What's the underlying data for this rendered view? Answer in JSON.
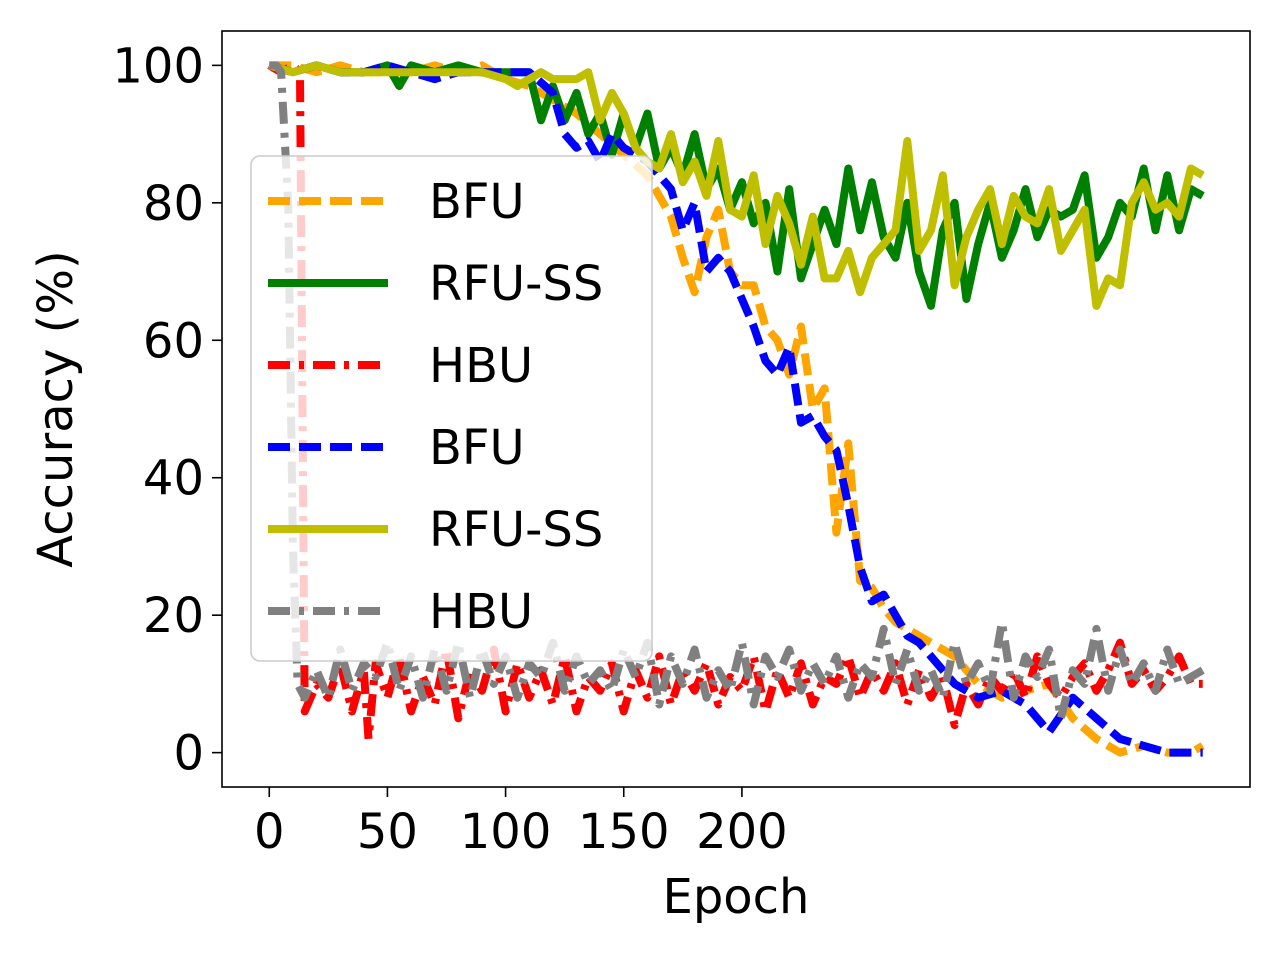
{
  "chart_data": {
    "type": "line",
    "title": "",
    "xlabel": "Epoch",
    "ylabel": "Accuracy (%)",
    "xlim": [
      -20,
      415
    ],
    "ylim": [
      -5,
      105
    ],
    "xticks": [
      0,
      50,
      100,
      150,
      200
    ],
    "yticks": [
      0,
      20,
      40,
      60,
      80,
      100
    ],
    "grid": false,
    "legend_position": "left",
    "series": [
      {
        "name": "BFU",
        "color": "#FFA500",
        "style": "dashed",
        "x": [
          0,
          10,
          20,
          30,
          40,
          50,
          60,
          70,
          80,
          90,
          100,
          110,
          120,
          130,
          140,
          150,
          160,
          170,
          175,
          180,
          185,
          190,
          195,
          200,
          205,
          210,
          215,
          220,
          225,
          230,
          235,
          240,
          245,
          250,
          255,
          260,
          265,
          270,
          275,
          280,
          285,
          290,
          300,
          310,
          320,
          330,
          340,
          350,
          360,
          370,
          380,
          390,
          395
        ],
        "y": [
          100,
          100,
          99,
          100,
          99,
          99,
          99,
          100,
          99,
          100,
          98,
          97,
          95,
          93,
          90,
          87,
          84,
          78,
          72,
          67,
          75,
          79,
          70,
          68,
          68,
          62,
          60,
          55,
          62,
          50,
          53,
          32,
          45,
          25,
          24,
          21,
          19,
          18,
          17,
          16,
          15,
          14,
          10,
          8,
          9,
          10,
          5,
          2,
          0,
          1,
          0,
          0,
          1
        ]
      },
      {
        "name": "RFU-SS",
        "color": "#008000",
        "style": "solid",
        "x": [
          0,
          10,
          20,
          30,
          40,
          50,
          55,
          60,
          70,
          80,
          90,
          100,
          110,
          115,
          120,
          125,
          130,
          135,
          140,
          145,
          150,
          155,
          160,
          165,
          170,
          175,
          180,
          185,
          190,
          195,
          200,
          205,
          210,
          215,
          220,
          225,
          230,
          235,
          240,
          245,
          250,
          255,
          260,
          265,
          270,
          275,
          280,
          285,
          290,
          295,
          300,
          305,
          310,
          315,
          320,
          325,
          330,
          335,
          340,
          345,
          350,
          355,
          360,
          365,
          370,
          375,
          380,
          385,
          390,
          395
        ],
        "y": [
          100,
          99,
          100,
          99,
          99,
          100,
          97,
          100,
          99,
          100,
          99,
          99,
          99,
          92,
          97,
          92,
          96,
          90,
          93,
          87,
          93,
          88,
          93,
          85,
          88,
          84,
          90,
          82,
          85,
          79,
          83,
          77,
          80,
          70,
          82,
          69,
          74,
          79,
          74,
          85,
          76,
          83,
          75,
          72,
          80,
          70,
          65,
          76,
          80,
          66,
          74,
          80,
          72,
          76,
          82,
          75,
          79,
          78,
          79,
          84,
          72,
          75,
          80,
          78,
          85,
          76,
          84,
          76,
          82,
          81
        ]
      },
      {
        "name": "HBU",
        "color": "#FF0000",
        "style": "dashdot",
        "x": [
          0,
          5,
          10,
          13,
          15,
          20,
          25,
          30,
          35,
          40,
          42,
          45,
          50,
          55,
          60,
          65,
          70,
          75,
          80,
          85,
          90,
          95,
          100,
          105,
          110,
          115,
          120,
          125,
          130,
          135,
          140,
          145,
          150,
          155,
          160,
          165,
          170,
          175,
          180,
          185,
          190,
          195,
          200,
          205,
          210,
          215,
          220,
          225,
          230,
          235,
          240,
          245,
          250,
          255,
          260,
          265,
          270,
          275,
          280,
          285,
          290,
          295,
          300,
          305,
          310,
          315,
          320,
          325,
          330,
          335,
          340,
          345,
          350,
          355,
          360,
          365,
          370,
          375,
          380,
          385,
          390,
          395
        ],
        "y": [
          100,
          99,
          100,
          99,
          6,
          10,
          8,
          13,
          6,
          12,
          2,
          13,
          8,
          14,
          6,
          11,
          7,
          15,
          5,
          12,
          9,
          15,
          6,
          13,
          8,
          12,
          7,
          14,
          6,
          11,
          9,
          13,
          6,
          12,
          8,
          14,
          7,
          12,
          9,
          13,
          7,
          11,
          9,
          14,
          6,
          12,
          8,
          13,
          7,
          11,
          10,
          14,
          8,
          12,
          9,
          13,
          7,
          12,
          8,
          11,
          4,
          10,
          7,
          11,
          9,
          12,
          8,
          14,
          10,
          8,
          11,
          13,
          9,
          12,
          16,
          10,
          12,
          9,
          11,
          14,
          10,
          10
        ]
      },
      {
        "name": "BFU",
        "color": "#0000FF",
        "style": "dashed",
        "x": [
          0,
          10,
          20,
          30,
          40,
          50,
          60,
          70,
          80,
          90,
          100,
          110,
          120,
          125,
          130,
          135,
          140,
          145,
          150,
          155,
          160,
          165,
          170,
          175,
          180,
          185,
          190,
          195,
          200,
          205,
          210,
          215,
          220,
          225,
          230,
          235,
          240,
          245,
          250,
          255,
          260,
          265,
          270,
          275,
          280,
          285,
          290,
          300,
          310,
          320,
          330,
          340,
          350,
          360,
          370,
          380,
          390,
          395
        ],
        "y": [
          100,
          99,
          100,
          99,
          99,
          100,
          99,
          98,
          99,
          99,
          99,
          99,
          96,
          90,
          88,
          89,
          86,
          90,
          88,
          87,
          86,
          84,
          82,
          76,
          80,
          70,
          72,
          70,
          66,
          62,
          57,
          55,
          59,
          48,
          49,
          46,
          44,
          36,
          27,
          22,
          23,
          20,
          17,
          16,
          14,
          12,
          10,
          8,
          9,
          7,
          3,
          8,
          5,
          2,
          1,
          0,
          0,
          0
        ]
      },
      {
        "name": "RFU-SS",
        "color": "#BFBF00",
        "style": "solid",
        "x": [
          0,
          10,
          20,
          30,
          40,
          50,
          60,
          70,
          80,
          90,
          100,
          105,
          110,
          115,
          120,
          125,
          130,
          135,
          140,
          145,
          150,
          155,
          160,
          165,
          170,
          175,
          180,
          185,
          190,
          195,
          200,
          205,
          210,
          215,
          220,
          225,
          230,
          235,
          240,
          245,
          250,
          255,
          260,
          265,
          270,
          275,
          280,
          285,
          290,
          295,
          300,
          305,
          310,
          315,
          320,
          325,
          330,
          335,
          340,
          345,
          350,
          355,
          360,
          365,
          370,
          375,
          380,
          385,
          390,
          395
        ],
        "y": [
          100,
          99,
          100,
          99,
          99,
          99,
          99,
          99,
          99,
          99,
          98,
          97,
          98,
          99,
          98,
          98,
          98,
          99,
          92,
          96,
          93,
          88,
          86,
          85,
          90,
          83,
          86,
          81,
          89,
          79,
          78,
          84,
          74,
          81,
          77,
          71,
          78,
          69,
          69,
          73,
          67,
          72,
          74,
          76,
          89,
          73,
          76,
          84,
          68,
          75,
          79,
          82,
          74,
          81,
          78,
          77,
          82,
          73,
          76,
          79,
          65,
          69,
          68,
          80,
          83,
          79,
          80,
          78,
          85,
          84
        ]
      },
      {
        "name": "HBU",
        "color": "#808080",
        "style": "dashdot",
        "x": [
          0,
          3,
          5,
          8,
          10,
          12,
          15,
          20,
          25,
          30,
          35,
          40,
          45,
          50,
          55,
          60,
          65,
          70,
          75,
          80,
          85,
          90,
          95,
          100,
          105,
          110,
          115,
          120,
          125,
          130,
          135,
          140,
          145,
          150,
          155,
          160,
          165,
          170,
          175,
          180,
          185,
          190,
          195,
          200,
          205,
          210,
          215,
          220,
          225,
          230,
          235,
          240,
          245,
          250,
          255,
          260,
          265,
          270,
          275,
          280,
          285,
          290,
          295,
          300,
          305,
          310,
          315,
          320,
          325,
          330,
          335,
          340,
          345,
          350,
          355,
          360,
          365,
          370,
          375,
          380,
          385,
          390,
          395
        ],
        "y": [
          100,
          100,
          99,
          80,
          30,
          10,
          8,
          12,
          8,
          15,
          9,
          13,
          11,
          16,
          9,
          14,
          8,
          15,
          9,
          16,
          8,
          15,
          10,
          14,
          8,
          13,
          11,
          16,
          9,
          14,
          10,
          12,
          9,
          15,
          11,
          16,
          7,
          14,
          10,
          15,
          8,
          12,
          9,
          16,
          7,
          14,
          11,
          15,
          9,
          13,
          10,
          14,
          8,
          13,
          11,
          18,
          10,
          15,
          9,
          12,
          8,
          16,
          10,
          13,
          9,
          19,
          8,
          14,
          11,
          15,
          5,
          12,
          10,
          18,
          9,
          15,
          10,
          13,
          9,
          15,
          10,
          11,
          12
        ]
      }
    ]
  }
}
